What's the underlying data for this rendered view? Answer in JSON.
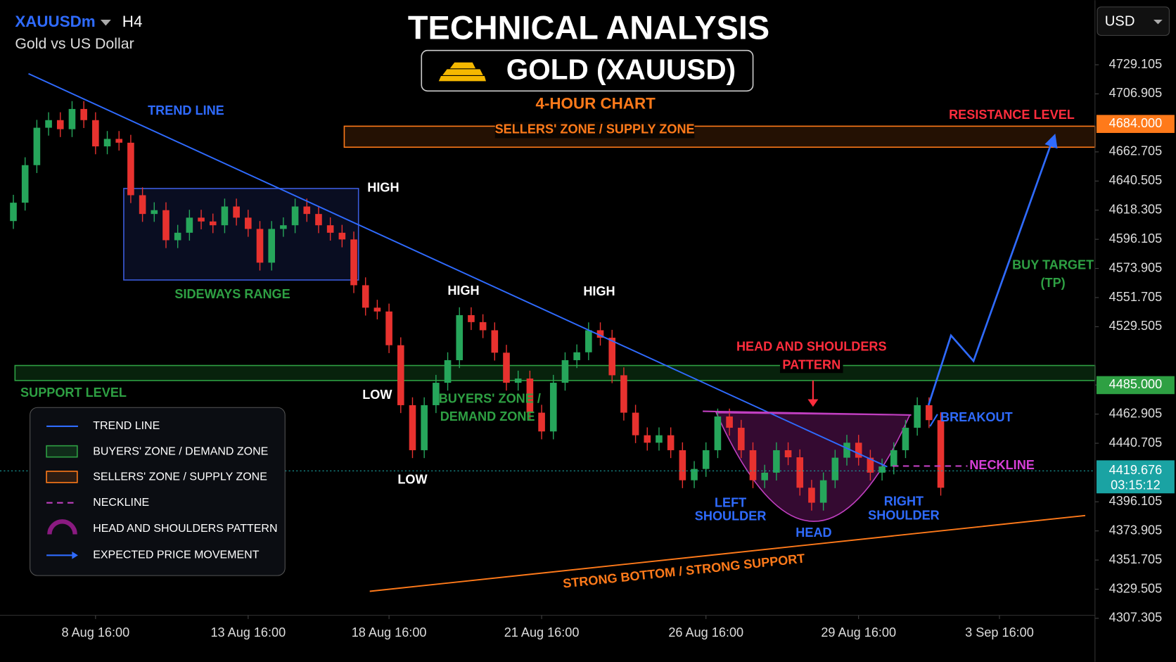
{
  "header": {
    "symbol": "XAUUSDm",
    "timeframe": "H4",
    "description": "Gold vs US Dollar",
    "currency": "USD"
  },
  "legend_items": [
    "TREND LINE",
    "BUYERS' ZONE / DEMAND ZONE",
    "SELLERS' ZONE / SUPPLY ZONE",
    "NECKLINE",
    "HEAD AND SHOULDERS PATTERN",
    "EXPECTED PRICE MOVEMENT"
  ],
  "chart_data": {
    "type": "candlestick",
    "title": "TECHNICAL ANALYSIS",
    "subtitle": "GOLD (XAUUSD)",
    "timeframe_label": "4-HOUR CHART",
    "annotations": [
      "TREND LINE",
      "SELLERS' ZONE / SUPPLY ZONE",
      "RESISTANCE LEVEL",
      "HIGH",
      "SIDEWAYS RANGE",
      "HIGH",
      "HIGH",
      "HEAD AND SHOULDERS",
      "PATTERN",
      "BUY TARGET",
      "(TP)",
      "SUPPORT LEVEL",
      "LOW",
      "BUYERS' ZONE /",
      "DEMAND ZONE",
      "BREAKOUT",
      "NECKLINE",
      "LOW",
      "LEFT",
      "SHOULDER",
      "RIGHT",
      "SHOULDER",
      "HEAD",
      "STRONG BOTTOM / STRONG SUPPORT"
    ],
    "categories": [
      null,
      null,
      null,
      null,
      null,
      null,
      null,
      "8 Aug 16:00",
      null,
      null,
      null,
      null,
      null,
      null,
      null,
      null,
      null,
      null,
      null,
      null,
      "13 Aug 16:00",
      null,
      null,
      null,
      null,
      null,
      null,
      null,
      null,
      null,
      null,
      null,
      "18 Aug 16:00",
      null,
      null,
      null,
      null,
      null,
      null,
      null,
      null,
      null,
      null,
      null,
      null,
      "21 Aug 16:00",
      null,
      null,
      null,
      null,
      null,
      null,
      null,
      null,
      null,
      null,
      null,
      null,
      null,
      "26 Aug 16:00",
      null,
      null,
      null,
      null,
      null,
      null,
      null,
      null,
      null,
      null,
      null,
      null,
      "29 Aug 16:00",
      null,
      null,
      null,
      null,
      null,
      null,
      null,
      null,
      null,
      null,
      null,
      "3 Sep 16:00",
      null,
      null,
      null,
      null,
      null,
      null,
      null
    ],
    "open": [
      4610.0,
      4624.0,
      4652.6,
      4681.1,
      4686.9,
      4680.0,
      4695.4,
      4686.9,
      4666.9,
      4672.6,
      4669.7,
      4629.7,
      4615.4,
      4618.3,
      4595.4,
      4601.1,
      4612.6,
      4609.7,
      4606.8,
      4621.1,
      4612.6,
      4604.0,
      4578.3,
      4604.0,
      4606.8,
      4621.1,
      4615.4,
      4606.8,
      4601.1,
      4596.0,
      4561.1,
      4544.0,
      4541.1,
      4515.4,
      4469.7,
      4435.4,
      4469.7,
      4486.8,
      4504.0,
      4538.3,
      4533.0,
      4526.8,
      4509.7,
      4486.8,
      4490.0,
      4464.0,
      4449.7,
      4486.8,
      4504.0,
      4510.0,
      4526.8,
      4521.1,
      4492.5,
      4464.0,
      4446.8,
      4441.1,
      4446.8,
      4435.4,
      4412.5,
      4421.1,
      4435.4,
      4461.1,
      4452.5,
      4435.4,
      4412.5,
      4418.3,
      4435.4,
      4430.0,
      4406.8,
      4395.4,
      4412.5,
      4429.7,
      4441.1,
      4429.7,
      4418.3,
      4423.0,
      4435.4,
      4452.5,
      4469.7,
      4458.3,
      null,
      null,
      null,
      null,
      null,
      null,
      null,
      null,
      null,
      null,
      null,
      null
    ],
    "high": [
      4630.0,
      4658.6,
      4687.1,
      4692.9,
      4692.9,
      4701.4,
      4701.4,
      4692.9,
      4678.6,
      4678.6,
      4675.7,
      4635.7,
      4624.3,
      4624.3,
      4607.1,
      4618.6,
      4618.6,
      4615.7,
      4627.1,
      4627.1,
      4618.6,
      4610.0,
      4610.0,
      4612.8,
      4627.1,
      4627.1,
      4621.4,
      4612.8,
      4607.1,
      4602.0,
      4567.1,
      4550.0,
      4547.1,
      4521.4,
      4475.7,
      4475.7,
      4492.8,
      4510.0,
      4544.3,
      4544.3,
      4539.0,
      4532.8,
      4515.7,
      4496.0,
      4496.0,
      4470.0,
      4492.8,
      4510.0,
      4516.0,
      4532.8,
      4532.8,
      4527.1,
      4498.5,
      4470.0,
      4452.8,
      4452.8,
      4452.8,
      4441.4,
      4427.1,
      4441.4,
      4467.1,
      4467.1,
      4458.5,
      4441.4,
      4424.3,
      4441.4,
      4441.4,
      4436.0,
      4412.8,
      4418.5,
      4435.7,
      4447.1,
      4447.1,
      4435.7,
      4429.0,
      4441.4,
      4458.5,
      4475.7,
      4475.7,
      4464.3,
      null,
      null,
      null,
      null,
      null,
      null,
      null,
      null,
      null,
      null,
      null,
      null
    ],
    "low": [
      4604.0,
      4618.0,
      4646.6,
      4675.1,
      4674.0,
      4674.0,
      4680.9,
      4660.9,
      4660.9,
      4663.7,
      4623.7,
      4609.4,
      4609.4,
      4589.4,
      4589.4,
      4595.1,
      4603.7,
      4600.8,
      4600.8,
      4606.6,
      4598.0,
      4572.3,
      4572.3,
      4598.0,
      4600.8,
      4609.4,
      4600.8,
      4595.1,
      4590.0,
      4555.1,
      4538.0,
      4535.1,
      4509.4,
      4463.7,
      4429.4,
      4429.4,
      4463.7,
      4480.8,
      4498.0,
      4527.0,
      4520.8,
      4503.7,
      4480.8,
      4480.8,
      4458.0,
      4443.7,
      4443.7,
      4480.8,
      4498.0,
      4504.0,
      4515.1,
      4486.5,
      4458.0,
      4440.8,
      4435.1,
      4435.1,
      4429.4,
      4406.5,
      4406.5,
      4415.1,
      4429.4,
      4446.5,
      4429.4,
      4406.5,
      4406.5,
      4412.3,
      4424.0,
      4400.8,
      4389.4,
      4389.4,
      4406.5,
      4423.7,
      4423.7,
      4412.3,
      4412.3,
      4417.0,
      4429.4,
      4446.5,
      4452.3,
      4400.8,
      null,
      null,
      null,
      null,
      null,
      null,
      null,
      null,
      null,
      null,
      null,
      null
    ],
    "close": [
      4624.0,
      4652.6,
      4681.1,
      4686.9,
      4680.0,
      4695.4,
      4686.9,
      4666.9,
      4672.6,
      4669.7,
      4629.7,
      4615.4,
      4618.3,
      4595.4,
      4601.1,
      4612.6,
      4609.7,
      4606.8,
      4621.1,
      4612.6,
      4604.0,
      4578.3,
      4604.0,
      4606.8,
      4621.1,
      4615.4,
      4606.8,
      4601.1,
      4596.0,
      4561.1,
      4544.0,
      4541.1,
      4515.4,
      4469.7,
      4435.4,
      4469.7,
      4486.8,
      4504.0,
      4538.3,
      4533.0,
      4526.8,
      4509.7,
      4486.8,
      4490.0,
      4464.0,
      4449.7,
      4486.8,
      4504.0,
      4510.0,
      4526.8,
      4521.1,
      4492.5,
      4464.0,
      4446.8,
      4441.1,
      4446.8,
      4435.4,
      4412.5,
      4421.1,
      4435.4,
      4461.1,
      4452.5,
      4435.4,
      4412.5,
      4418.3,
      4435.4,
      4430.0,
      4406.8,
      4395.4,
      4412.5,
      4429.7,
      4441.1,
      4429.7,
      4418.3,
      4423.0,
      4435.4,
      4452.5,
      4469.7,
      4458.3,
      4406.8,
      null,
      null,
      null,
      null,
      null,
      null,
      null,
      null,
      null,
      null,
      null,
      null
    ],
    "up_color": "#26a65b",
    "down_color": "#e8322f",
    "ylim": [
      4309.6,
      4778.3
    ],
    "yticks": [
      4729.105,
      4706.905,
      4662.705,
      4640.505,
      4618.305,
      4596.105,
      4573.905,
      4551.705,
      4529.505,
      4485.105,
      4462.905,
      4440.705,
      4396.105,
      4373.905,
      4351.705,
      4329.505,
      4307.305
    ],
    "levels": [
      {
        "value": 4684,
        "label": "4684.000",
        "color": "#ff7a1a"
      },
      {
        "value": 4485,
        "label": "4485.000",
        "color": "#2ea043"
      }
    ],
    "current_price": {
      "value": 4419.676,
      "timer": "03:15:12",
      "color": "#1aa3a3"
    },
    "grid": false
  }
}
